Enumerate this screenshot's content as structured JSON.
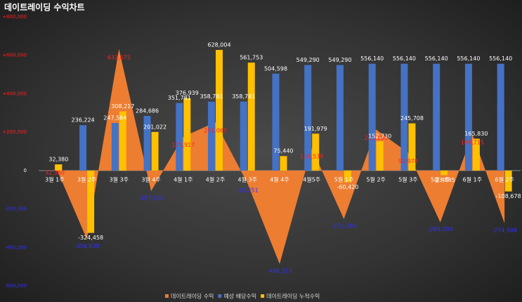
{
  "chart_data": {
    "type": "combo",
    "title": "데이트레이딩 수익차트",
    "categories": [
      "3월 1주",
      "3월 2주",
      "3월 3주",
      "3월 4주",
      "4월 1주",
      "4월 2주",
      "4월 3주",
      "4월 4주",
      "4월5주",
      "5월 1주",
      "5월 2주",
      "5월 3주",
      "5월 4주",
      "6월 1주",
      "6월 2주"
    ],
    "series": [
      {
        "name": "데이트레이딩 수익",
        "color": "#ed7d31",
        "kind": "area",
        "values": [
          32380,
          -356838,
          632675,
          -107195,
          175917,
          251065,
          -66251,
          -486313,
          116539,
          -252399,
          213150,
          92978,
          -269593,
          189715,
          -274508
        ],
        "value_labels": [
          "32,380",
          "-356,838",
          "632,675",
          "-107,195",
          "175,917",
          "251,065",
          "-66,251",
          "-486,313",
          "116,539",
          "-252,399",
          "213,150",
          "92,978",
          "-269,593",
          "189,715",
          "-274,508"
        ]
      },
      {
        "name": "예상 배당수익",
        "color": "#4472c4",
        "kind": "bar",
        "values": [
          null,
          236224,
          247584,
          284686,
          351781,
          358781,
          358781,
          504598,
          549290,
          549290,
          556140,
          556140,
          556140,
          556140,
          556140
        ],
        "value_labels": [
          null,
          "236,224",
          "247,584",
          "284,686",
          "351,781",
          "358,781",
          "358,781",
          "504,598",
          "549,290",
          "549,290",
          "556,140",
          "556,140",
          "556,140",
          "556,140",
          "556,140"
        ]
      },
      {
        "name": "데이트레이딩 누적수익",
        "color": "#ffc000",
        "kind": "bar",
        "values": [
          32380,
          -324458,
          308217,
          201022,
          376939,
          628004,
          561753,
          75440,
          191979,
          -60420,
          152730,
          245708,
          -23885,
          165830,
          -108678
        ],
        "value_labels": [
          "32,380",
          "-324,458",
          "308,217",
          "201,022",
          "376,939",
          "628,004",
          "561,753",
          "75,440",
          "191,979",
          "-60,420",
          "152,730",
          "245,708",
          "-23,885",
          "165,830",
          "-108,678"
        ]
      }
    ],
    "ylim": [
      -600000,
      800000
    ],
    "yticks": [
      {
        "value": 800000,
        "label": "+800,000"
      },
      {
        "value": 600000,
        "label": "+600,000"
      },
      {
        "value": 400000,
        "label": "+400,000"
      },
      {
        "value": 200000,
        "label": "+200,000"
      },
      0,
      {
        "value": -200000,
        "label": "-200,000"
      },
      {
        "value": -400000,
        "label": "-400,000"
      },
      {
        "value": -600000,
        "label": "-600,000"
      }
    ],
    "legend": "bottom"
  }
}
